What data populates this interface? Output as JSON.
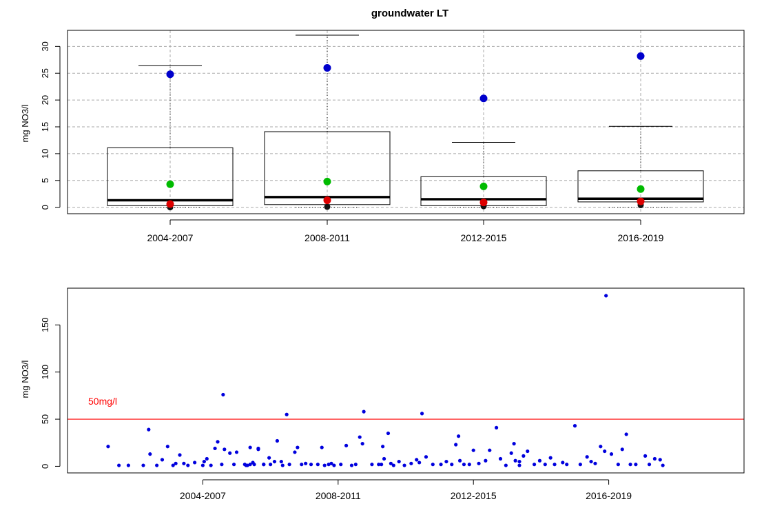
{
  "chart_data": [
    {
      "type": "box",
      "title": "groundwater LT",
      "ylabel": "mg NO3/l",
      "categories": [
        "2004-2007",
        "2008-2011",
        "2012-2015",
        "2016-2019"
      ],
      "y_ticks": [
        0,
        5,
        10,
        15,
        20,
        25,
        30
      ],
      "ylim": [
        -1.2,
        33
      ],
      "grid": true,
      "boxes": [
        {
          "category": "2004-2007",
          "q1": 0.3,
          "median": 1.3,
          "q3": 11.1,
          "whisker_high": 26.4
        },
        {
          "category": "2008-2011",
          "q1": 0.5,
          "median": 1.9,
          "q3": 14.1,
          "whisker_high": 32.1
        },
        {
          "category": "2012-2015",
          "q1": 0.3,
          "median": 1.5,
          "q3": 5.7,
          "whisker_high": 12.1
        },
        {
          "category": "2016-2019",
          "q1": 1.0,
          "median": 1.6,
          "q3": 6.8,
          "whisker_high": 15.1
        }
      ],
      "series": [
        {
          "color": "#0000cc",
          "values": [
            24.8,
            26.0,
            20.3,
            28.2
          ]
        },
        {
          "color": "#00bb00",
          "values": [
            4.3,
            4.8,
            3.9,
            3.4
          ]
        },
        {
          "color": "#dd0000",
          "values": [
            0.6,
            1.3,
            0.9,
            1.1
          ]
        }
      ],
      "lower_markers": [
        {
          "category": "2004-2007",
          "value": 0.0
        },
        {
          "category": "2008-2011",
          "value": 0.1
        },
        {
          "category": "2012-2015",
          "value": 0.2
        },
        {
          "category": "2016-2019",
          "value": 0.4
        }
      ]
    },
    {
      "type": "scatter",
      "ylabel": "mg NO3/l",
      "categories": [
        "2004-2007",
        "2008-2011",
        "2012-2015",
        "2016-2019"
      ],
      "y_ticks": [
        0,
        50,
        100,
        150
      ],
      "ylim": [
        -7,
        189
      ],
      "xlim": [
        0,
        5
      ],
      "point_color": "#0000dd",
      "threshold": {
        "value": 50,
        "label": "50mg/l",
        "color": "#ff0000"
      },
      "points": [
        {
          "x": 0.3,
          "y": 21
        },
        {
          "x": 0.38,
          "y": 1
        },
        {
          "x": 0.45,
          "y": 1
        },
        {
          "x": 0.56,
          "y": 1
        },
        {
          "x": 0.6,
          "y": 39
        },
        {
          "x": 0.61,
          "y": 13
        },
        {
          "x": 0.66,
          "y": 1
        },
        {
          "x": 0.7,
          "y": 7
        },
        {
          "x": 0.74,
          "y": 21
        },
        {
          "x": 0.78,
          "y": 1
        },
        {
          "x": 0.8,
          "y": 3
        },
        {
          "x": 0.83,
          "y": 12
        },
        {
          "x": 0.86,
          "y": 3
        },
        {
          "x": 0.89,
          "y": 1
        },
        {
          "x": 1.0,
          "y": 1
        },
        {
          "x": 1.01,
          "y": 5
        },
        {
          "x": 1.06,
          "y": 1
        },
        {
          "x": 1.09,
          "y": 19
        },
        {
          "x": 1.11,
          "y": 26
        },
        {
          "x": 1.14,
          "y": 2
        },
        {
          "x": 1.15,
          "y": 76
        },
        {
          "x": 1.16,
          "y": 18
        },
        {
          "x": 1.2,
          "y": 14
        },
        {
          "x": 1.23,
          "y": 2
        },
        {
          "x": 1.25,
          "y": 15
        },
        {
          "x": 1.31,
          "y": 2
        },
        {
          "x": 1.35,
          "y": 2
        },
        {
          "x": 1.38,
          "y": 2
        },
        {
          "x": 1.41,
          "y": 19
        },
        {
          "x": 1.45,
          "y": 2
        },
        {
          "x": 1.5,
          "y": 2
        },
        {
          "x": 1.33,
          "y": 1
        },
        {
          "x": 1.03,
          "y": 8
        },
        {
          "x": 0.94,
          "y": 4
        },
        {
          "x": 1.32,
          "y": 1
        },
        {
          "x": 1.35,
          "y": 20
        },
        {
          "x": 1.37,
          "y": 4
        },
        {
          "x": 1.41,
          "y": 18
        },
        {
          "x": 1.45,
          "y": 2
        },
        {
          "x": 1.49,
          "y": 9
        },
        {
          "x": 1.53,
          "y": 5
        },
        {
          "x": 1.55,
          "y": 27
        },
        {
          "x": 1.59,
          "y": 1
        },
        {
          "x": 1.62,
          "y": 55
        },
        {
          "x": 1.64,
          "y": 2
        },
        {
          "x": 1.68,
          "y": 15
        },
        {
          "x": 1.7,
          "y": 20
        },
        {
          "x": 1.73,
          "y": 2
        },
        {
          "x": 1.76,
          "y": 3
        },
        {
          "x": 1.8,
          "y": 2
        },
        {
          "x": 1.85,
          "y": 2
        },
        {
          "x": 1.88,
          "y": 20
        },
        {
          "x": 1.9,
          "y": 1
        },
        {
          "x": 1.93,
          "y": 2
        },
        {
          "x": 1.97,
          "y": 1
        },
        {
          "x": 2.02,
          "y": 2
        },
        {
          "x": 2.06,
          "y": 22
        },
        {
          "x": 2.1,
          "y": 1
        },
        {
          "x": 2.13,
          "y": 2
        },
        {
          "x": 2.16,
          "y": 31
        },
        {
          "x": 2.18,
          "y": 24
        },
        {
          "x": 2.19,
          "y": 58
        },
        {
          "x": 2.25,
          "y": 2
        },
        {
          "x": 2.3,
          "y": 2
        },
        {
          "x": 2.34,
          "y": 8
        },
        {
          "x": 2.39,
          "y": 3
        },
        {
          "x": 1.58,
          "y": 5
        },
        {
          "x": 1.95,
          "y": 3
        },
        {
          "x": 2.32,
          "y": 2
        },
        {
          "x": 2.33,
          "y": 21
        },
        {
          "x": 2.37,
          "y": 35
        },
        {
          "x": 2.41,
          "y": 1
        },
        {
          "x": 2.45,
          "y": 5
        },
        {
          "x": 2.49,
          "y": 1
        },
        {
          "x": 2.54,
          "y": 3
        },
        {
          "x": 2.58,
          "y": 7
        },
        {
          "x": 2.62,
          "y": 56
        },
        {
          "x": 2.65,
          "y": 10
        },
        {
          "x": 2.7,
          "y": 2
        },
        {
          "x": 2.76,
          "y": 2
        },
        {
          "x": 2.8,
          "y": 5
        },
        {
          "x": 2.84,
          "y": 2
        },
        {
          "x": 2.87,
          "y": 23
        },
        {
          "x": 2.89,
          "y": 32
        },
        {
          "x": 2.93,
          "y": 2
        },
        {
          "x": 2.97,
          "y": 2
        },
        {
          "x": 3.0,
          "y": 17
        },
        {
          "x": 3.04,
          "y": 3
        },
        {
          "x": 3.09,
          "y": 6
        },
        {
          "x": 3.12,
          "y": 17
        },
        {
          "x": 3.17,
          "y": 41
        },
        {
          "x": 3.2,
          "y": 8
        },
        {
          "x": 3.24,
          "y": 1
        },
        {
          "x": 3.28,
          "y": 14
        },
        {
          "x": 3.31,
          "y": 6
        },
        {
          "x": 3.34,
          "y": 1
        },
        {
          "x": 2.6,
          "y": 4
        },
        {
          "x": 2.9,
          "y": 6
        },
        {
          "x": 3.3,
          "y": 24
        },
        {
          "x": 3.34,
          "y": 5
        },
        {
          "x": 3.37,
          "y": 11
        },
        {
          "x": 3.4,
          "y": 16
        },
        {
          "x": 3.45,
          "y": 2
        },
        {
          "x": 3.49,
          "y": 6
        },
        {
          "x": 3.53,
          "y": 2
        },
        {
          "x": 3.57,
          "y": 9
        },
        {
          "x": 3.6,
          "y": 2
        },
        {
          "x": 3.66,
          "y": 4
        },
        {
          "x": 3.69,
          "y": 2
        },
        {
          "x": 3.75,
          "y": 43
        },
        {
          "x": 3.79,
          "y": 2
        },
        {
          "x": 3.84,
          "y": 10
        },
        {
          "x": 3.87,
          "y": 5
        },
        {
          "x": 3.9,
          "y": 3
        },
        {
          "x": 3.94,
          "y": 21
        },
        {
          "x": 3.97,
          "y": 16
        },
        {
          "x": 3.98,
          "y": 181
        },
        {
          "x": 4.02,
          "y": 13
        },
        {
          "x": 4.07,
          "y": 2
        },
        {
          "x": 4.1,
          "y": 18
        },
        {
          "x": 4.13,
          "y": 34
        },
        {
          "x": 4.16,
          "y": 2
        },
        {
          "x": 4.2,
          "y": 2
        },
        {
          "x": 4.27,
          "y": 11
        },
        {
          "x": 4.3,
          "y": 2
        },
        {
          "x": 4.34,
          "y": 8
        },
        {
          "x": 4.38,
          "y": 7
        },
        {
          "x": 4.4,
          "y": 1
        }
      ]
    }
  ]
}
